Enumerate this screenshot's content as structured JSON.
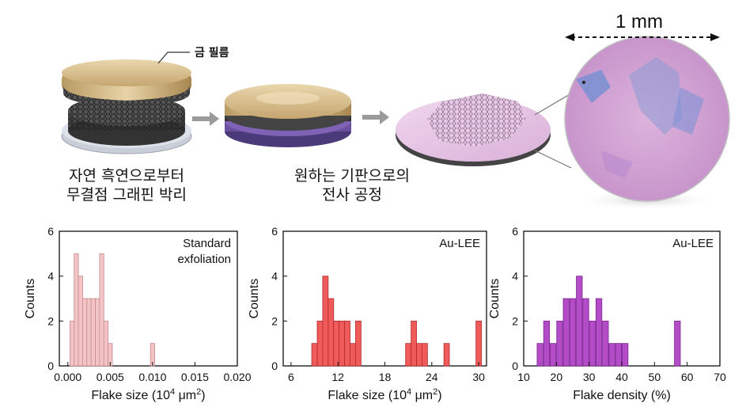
{
  "illustration": {
    "gold_film_label": "금 필름",
    "step1_caption_line1": "자연 흑연으로부터",
    "step1_caption_line2": "무결점 그래핀 박리",
    "step2_caption_line1": "원하는 기판으로의",
    "step2_caption_line2": "전사 공정",
    "scale_bar_label": "1 mm",
    "colors": {
      "gold": "#cbb07e",
      "substrate_purple": "#6b4fa0",
      "wafer_pink": "#e2c4df",
      "micrograph": "#d6a7d6"
    }
  },
  "chart_data": [
    {
      "type": "bar",
      "annotation": "Standard\nexfoliation",
      "annotation_lines": [
        "Standard",
        "exfoliation"
      ],
      "xlabel": "Flake size (10",
      "xlabel_sup": "4",
      "xlabel_tail": " μm",
      "xlabel_sup2": "2",
      "xlabel_end": ")",
      "ylabel": "Counts",
      "xlim": [
        -0.001,
        0.02
      ],
      "ylim": [
        0,
        6
      ],
      "xticks": [
        "0.000",
        "0.005",
        "0.010",
        "0.015",
        "0.020"
      ],
      "xtick_values": [
        0,
        0.005,
        0.01,
        0.015,
        0.02
      ],
      "yticks": [
        "0",
        "2",
        "4",
        "6"
      ],
      "bin_width": 0.0005,
      "x": [
        0.0005,
        0.001,
        0.0015,
        0.002,
        0.0025,
        0.003,
        0.0035,
        0.004,
        0.0045,
        0.005,
        0.0055,
        0.006,
        0.0065,
        0.007,
        0.0075,
        0.008,
        0.0085,
        0.009,
        0.0095,
        0.01,
        0.0105
      ],
      "values": [
        2,
        5,
        4,
        3,
        3,
        3,
        3,
        5,
        2,
        1,
        0,
        0,
        0,
        0,
        0,
        0,
        0,
        0,
        0,
        1,
        0
      ],
      "color": "#f2c4c6",
      "stroke": "#c98b8e"
    },
    {
      "type": "bar",
      "annotation": "Au-LEE",
      "annotation_lines": [
        "Au-LEE"
      ],
      "xlabel": "Flake size (10",
      "xlabel_sup": "4",
      "xlabel_tail": " μm",
      "xlabel_sup2": "2",
      "xlabel_end": ")",
      "ylabel": "Counts",
      "xlim": [
        5,
        31
      ],
      "ylim": [
        0,
        6
      ],
      "xticks": [
        "6",
        "12",
        "18",
        "24",
        "30"
      ],
      "xtick_values": [
        6,
        12,
        18,
        24,
        30
      ],
      "yticks": [
        "0",
        "2",
        "4",
        "6"
      ],
      "bin_width": 0.7,
      "x": [
        9.0,
        9.7,
        10.4,
        11.1,
        11.8,
        12.5,
        13.2,
        13.9,
        14.6,
        15.3,
        21.0,
        21.7,
        22.4,
        23.1,
        25.9,
        30.0
      ],
      "values": [
        1,
        2,
        4,
        3,
        2,
        2,
        2,
        1,
        2,
        0,
        1,
        2,
        1,
        1,
        1,
        2
      ],
      "color": "#ef5a5a",
      "stroke": "#b32b2b"
    },
    {
      "type": "bar",
      "annotation": "Au-LEE",
      "annotation_lines": [
        "Au-LEE"
      ],
      "xlabel": "Flake density (%)",
      "ylabel": "Counts",
      "xlim": [
        10,
        70
      ],
      "ylim": [
        0,
        6
      ],
      "xticks": [
        "10",
        "20",
        "30",
        "40",
        "50",
        "60",
        "70"
      ],
      "xtick_values": [
        10,
        20,
        30,
        40,
        50,
        60,
        70
      ],
      "yticks": [
        "0",
        "2",
        "4",
        "6"
      ],
      "bin_width": 1.8,
      "x": [
        15,
        17,
        19,
        21,
        23,
        25,
        27,
        29,
        31,
        33,
        35,
        37,
        39,
        41,
        43,
        57
      ],
      "values": [
        1,
        2,
        1,
        2,
        3,
        3,
        4,
        3,
        2,
        3,
        2,
        1,
        1,
        1,
        0,
        2
      ],
      "color": "#b44cc8",
      "stroke": "#7a2590"
    }
  ]
}
